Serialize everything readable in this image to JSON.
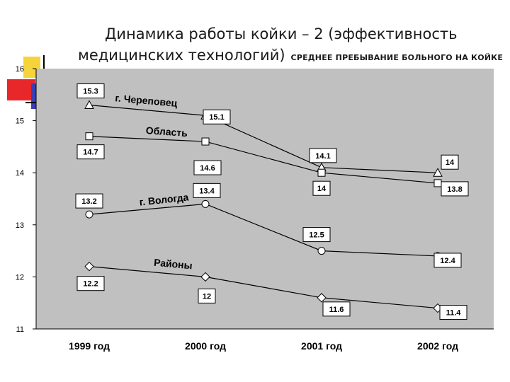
{
  "header": {
    "title_line1": "Динамика работы койки – 2 (эффективность",
    "title_line2": "медицинских технологий)",
    "subtitle": "СРЕДНЕЕ ПРЕБЫВАНИЕ БОЛЬНОГО НА КОЙКЕ"
  },
  "colors": {
    "plot_background": "#c0c0c0",
    "line": "#000000",
    "deco_yellow": "#f5d33a",
    "deco_red": "#e8272b",
    "deco_blue": "#3a3fb8"
  },
  "chart_data": {
    "type": "line",
    "categories": [
      "1999 год",
      "2000 год",
      "2001 год",
      "2002 год"
    ],
    "ylim": [
      11,
      16
    ],
    "yticks": [
      11,
      12,
      13,
      14,
      15,
      16
    ],
    "grid": false,
    "series": [
      {
        "name": "г. Череповец",
        "marker": "triangle",
        "values": [
          15.3,
          15.1,
          14.1,
          14
        ],
        "labels": [
          "15.3",
          "15.1",
          "14.1",
          "14"
        ]
      },
      {
        "name": "Область",
        "marker": "square",
        "values": [
          14.7,
          14.6,
          14,
          13.8
        ],
        "labels": [
          "14.7",
          "14.6",
          "14",
          "13.8"
        ]
      },
      {
        "name": "г. Вологда",
        "marker": "circle",
        "values": [
          13.2,
          13.4,
          12.5,
          12.4
        ],
        "labels": [
          "13.2",
          "13.4",
          "12.5",
          "12.4"
        ]
      },
      {
        "name": "Районы",
        "marker": "diamond",
        "values": [
          12.2,
          12,
          11.6,
          11.4
        ],
        "labels": [
          "12.2",
          "12",
          "11.6",
          "11.4"
        ]
      }
    ]
  }
}
